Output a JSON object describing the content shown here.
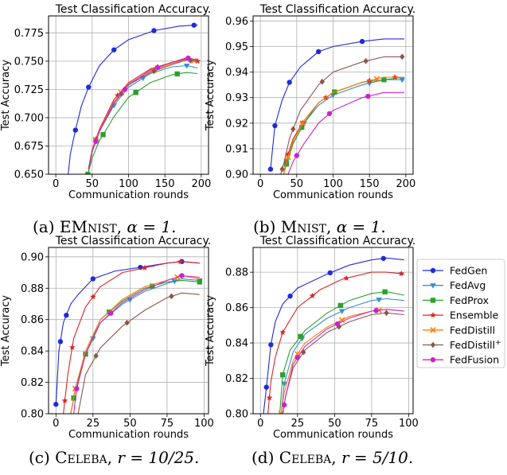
{
  "colors": {
    "FedGen": "#1f2bd6",
    "FedAvg": "#3a8fd0",
    "FedProx": "#2ca02c",
    "Ensemble": "#d62728",
    "FedDistill": "#ff7f0e",
    "FedDistill+": "#8c564b",
    "FedFusion": "#cc22cc"
  },
  "legend": {
    "placement": "right of panel (d)",
    "entries": [
      {
        "key": "FedGen",
        "label": "FedGen",
        "marker": "circle"
      },
      {
        "key": "FedAvg",
        "label": "FedAvg",
        "marker": "triangle-down"
      },
      {
        "key": "FedProx",
        "label": "FedProx",
        "marker": "square"
      },
      {
        "key": "Ensemble",
        "label": "Ensemble",
        "marker": "star"
      },
      {
        "key": "FedDistill",
        "label": "FedDistill",
        "marker": "x"
      },
      {
        "key": "FedDistill+",
        "label": "FedDistill",
        "label_sup": "+",
        "marker": "diamond"
      },
      {
        "key": "FedFusion",
        "label": "FedFusion",
        "marker": "circle"
      }
    ]
  },
  "captions": [
    {
      "prefix": "(a) ",
      "name": "EM",
      "name_sc": "NIST",
      "sep": ", ",
      "math": "α = 1",
      "suffix": "."
    },
    {
      "prefix": "(b) ",
      "name": "M",
      "name_sc": "NIST",
      "sep": ", ",
      "math": "α = 1",
      "suffix": "."
    },
    {
      "prefix": "(c) ",
      "name": "C",
      "name_sc": "ELEBA",
      "sep": ", ",
      "math": "r = 10/25",
      "suffix": "."
    },
    {
      "prefix": "(d) ",
      "name": "C",
      "name_sc": "ELEBA",
      "sep": ", ",
      "math": "r = 5/10",
      "suffix": "."
    }
  ],
  "chart_data": [
    {
      "type": "line",
      "title": "Test Classification Accuracy.",
      "xlabel": "Communication rounds",
      "ylabel": "Test Accuracy",
      "xlim": [
        -10,
        210
      ],
      "ylim": [
        0.65,
        0.79
      ],
      "xticks": [
        "0",
        "50",
        "100",
        "150",
        "200"
      ],
      "xtick_values": [
        0,
        50,
        100,
        150,
        200
      ],
      "yticks": [
        "0.650",
        "0.675",
        "0.700",
        "0.725",
        "0.750",
        "0.775"
      ],
      "ytick_values": [
        0.65,
        0.675,
        0.7,
        0.725,
        0.75,
        0.775
      ],
      "grid": true,
      "series": [
        {
          "name": "FedGen",
          "x": [
            17,
            20,
            27,
            35,
            45,
            60,
            80,
            100,
            135,
            170,
            195
          ],
          "y": [
            0.65,
            0.668,
            0.689,
            0.71,
            0.727,
            0.746,
            0.76,
            0.769,
            0.777,
            0.781,
            0.782
          ],
          "markers": [
            27,
            45,
            80,
            135,
            190
          ]
        },
        {
          "name": "FedAvg",
          "x": [
            45,
            50,
            60,
            80,
            100,
            130,
            160,
            180,
            195
          ],
          "y": [
            0.653,
            0.67,
            0.688,
            0.711,
            0.727,
            0.739,
            0.745,
            0.746,
            0.744
          ],
          "markers": [
            55,
            80,
            120,
            180
          ]
        },
        {
          "name": "FedProx",
          "x": [
            44,
            50,
            60,
            70,
            80,
            100,
            130,
            160,
            180,
            195
          ],
          "y": [
            0.65,
            0.664,
            0.68,
            0.69,
            0.701,
            0.718,
            0.731,
            0.738,
            0.74,
            0.739
          ],
          "markers": [
            44,
            65,
            110,
            167
          ]
        },
        {
          "name": "Ensemble",
          "x": [
            45,
            50,
            60,
            80,
            100,
            130,
            160,
            180,
            195
          ],
          "y": [
            0.655,
            0.672,
            0.69,
            0.716,
            0.731,
            0.743,
            0.749,
            0.752,
            0.75
          ],
          "markers": [
            55,
            85,
            140,
            195
          ]
        },
        {
          "name": "FedDistill",
          "x": [
            45,
            50,
            60,
            80,
            100,
            130,
            160,
            180,
            195
          ],
          "y": [
            0.655,
            0.672,
            0.689,
            0.714,
            0.73,
            0.741,
            0.748,
            0.751,
            0.75
          ],
          "markers": [
            55,
            90,
            135,
            190
          ]
        },
        {
          "name": "FedDistill+",
          "x": [
            45,
            50,
            60,
            80,
            100,
            130,
            160,
            180,
            195
          ],
          "y": [
            0.655,
            0.671,
            0.688,
            0.713,
            0.729,
            0.74,
            0.747,
            0.751,
            0.75
          ],
          "markers": [
            55,
            90,
            135,
            185
          ]
        },
        {
          "name": "FedFusion",
          "x": [
            45,
            50,
            60,
            80,
            100,
            130,
            160,
            180,
            195
          ],
          "y": [
            0.654,
            0.67,
            0.688,
            0.713,
            0.729,
            0.742,
            0.749,
            0.753,
            0.751
          ],
          "markers": [
            55,
            95,
            140,
            182
          ]
        }
      ]
    },
    {
      "type": "line",
      "title": "Test Classification Accuracy.",
      "xlabel": "Communication rounds",
      "ylabel": "Test Accuracy",
      "xlim": [
        -10,
        210
      ],
      "ylim": [
        0.9,
        0.962
      ],
      "xticks": [
        "0",
        "50",
        "100",
        "150",
        "200"
      ],
      "xtick_values": [
        0,
        50,
        100,
        150,
        200
      ],
      "yticks": [
        "0.90",
        "0.91",
        "0.92",
        "0.93",
        "0.94",
        "0.95",
        "0.96"
      ],
      "ytick_values": [
        0.9,
        0.91,
        0.92,
        0.93,
        0.94,
        0.95,
        0.96
      ],
      "grid": true,
      "series": [
        {
          "name": "FedGen",
          "x": [
            14,
            20,
            30,
            40,
            55,
            80,
            100,
            140,
            170,
            198
          ],
          "y": [
            0.902,
            0.919,
            0.929,
            0.936,
            0.942,
            0.948,
            0.95,
            0.952,
            0.953,
            0.953
          ],
          "markers": [
            14,
            20,
            40,
            80,
            140
          ]
        },
        {
          "name": "FedAvg",
          "x": [
            32,
            36,
            45,
            60,
            80,
            100,
            140,
            170,
            198
          ],
          "y": [
            0.9,
            0.905,
            0.912,
            0.92,
            0.927,
            0.931,
            0.935,
            0.937,
            0.937
          ],
          "markers": [
            36,
            60,
            100,
            150,
            195
          ]
        },
        {
          "name": "FedProx",
          "x": [
            32,
            36,
            45,
            60,
            80,
            100,
            140,
            170,
            198
          ],
          "y": [
            0.9,
            0.904,
            0.912,
            0.92,
            0.928,
            0.932,
            0.936,
            0.937,
            0.938
          ],
          "markers": [
            36,
            57,
            102,
            170
          ]
        },
        {
          "name": "Ensemble",
          "x": [
            32,
            36,
            45,
            60,
            80,
            100,
            140,
            170,
            198
          ],
          "y": [
            0.9,
            0.906,
            0.914,
            0.921,
            0.928,
            0.932,
            0.936,
            0.938,
            0.938
          ],
          "markers": [
            38,
            58,
            90,
            150,
            185
          ]
        },
        {
          "name": "FedDistill",
          "x": [
            32,
            36,
            45,
            60,
            80,
            100,
            140,
            170,
            198
          ],
          "y": [
            0.9,
            0.905,
            0.913,
            0.921,
            0.928,
            0.932,
            0.936,
            0.938,
            0.938
          ],
          "markers": [
            38,
            58,
            160
          ]
        },
        {
          "name": "FedDistill+",
          "x": [
            28,
            32,
            40,
            55,
            80,
            100,
            140,
            170,
            198
          ],
          "y": [
            0.9,
            0.904,
            0.914,
            0.925,
            0.935,
            0.94,
            0.944,
            0.946,
            0.946
          ],
          "markers": [
            30,
            45,
            85,
            145,
            195
          ]
        },
        {
          "name": "FedFusion",
          "x": [
            38,
            45,
            60,
            80,
            100,
            140,
            170,
            198
          ],
          "y": [
            0.9,
            0.905,
            0.912,
            0.92,
            0.925,
            0.93,
            0.932,
            0.932
          ],
          "markers": [
            50,
            95,
            148
          ]
        }
      ]
    },
    {
      "type": "line",
      "title": "Test Classification Accuracy.",
      "xlabel": "Communication rounds",
      "ylabel": "Test Accuracy",
      "xlim": [
        -5,
        103
      ],
      "ylim": [
        0.8,
        0.906
      ],
      "xticks": [
        "0",
        "25",
        "50",
        "75",
        "100"
      ],
      "xtick_values": [
        0,
        25,
        50,
        75,
        100
      ],
      "yticks": [
        "0.80",
        "0.82",
        "0.84",
        "0.86",
        "0.88",
        "0.90"
      ],
      "ytick_values": [
        0.8,
        0.82,
        0.84,
        0.86,
        0.88,
        0.9
      ],
      "grid": true,
      "series": [
        {
          "name": "FedGen",
          "x": [
            0,
            2,
            5,
            10,
            15,
            25,
            40,
            55,
            75,
            85,
            97
          ],
          "y": [
            0.806,
            0.84,
            0.858,
            0.87,
            0.876,
            0.886,
            0.891,
            0.893,
            0.896,
            0.897,
            0.896
          ],
          "markers": [
            0,
            3,
            7,
            25,
            57,
            85
          ]
        },
        {
          "name": "FedAvg",
          "x": [
            10,
            13,
            20,
            30,
            45,
            60,
            75,
            85,
            97
          ],
          "y": [
            0.8,
            0.815,
            0.838,
            0.858,
            0.87,
            0.878,
            0.883,
            0.886,
            0.885
          ],
          "markers": [
            12,
            25,
            50,
            80,
            97
          ]
        },
        {
          "name": "FedProx",
          "x": [
            10,
            13,
            20,
            30,
            45,
            60,
            75,
            85,
            97
          ],
          "y": [
            0.8,
            0.815,
            0.838,
            0.86,
            0.872,
            0.88,
            0.884,
            0.885,
            0.884
          ],
          "markers": [
            12,
            20,
            36,
            65,
            97
          ]
        },
        {
          "name": "Ensemble",
          "x": [
            5,
            8,
            12,
            20,
            30,
            45,
            60,
            75,
            85,
            97
          ],
          "y": [
            0.8,
            0.825,
            0.848,
            0.868,
            0.881,
            0.89,
            0.893,
            0.896,
            0.897,
            0.896
          ],
          "markers": [
            6,
            11,
            25,
            60,
            84
          ]
        },
        {
          "name": "FedDistill",
          "x": [
            10,
            13,
            20,
            30,
            45,
            60,
            75,
            85,
            97
          ],
          "y": [
            0.8,
            0.816,
            0.84,
            0.86,
            0.873,
            0.881,
            0.885,
            0.888,
            0.886
          ],
          "markers": [
            13,
            82
          ]
        },
        {
          "name": "FedDistill+",
          "x": [
            15,
            20,
            30,
            45,
            60,
            75,
            85,
            97
          ],
          "y": [
            0.8,
            0.825,
            0.842,
            0.856,
            0.866,
            0.874,
            0.877,
            0.876
          ],
          "markers": [
            27,
            48,
            78
          ]
        },
        {
          "name": "FedFusion",
          "x": [
            12,
            14,
            20,
            30,
            45,
            60,
            75,
            85,
            97
          ],
          "y": [
            0.8,
            0.816,
            0.838,
            0.858,
            0.871,
            0.879,
            0.885,
            0.888,
            0.887
          ],
          "markers": [
            14,
            37,
            85
          ]
        }
      ]
    },
    {
      "type": "line",
      "title": "Test Classification Accuracy.",
      "xlabel": "Communication rounds",
      "ylabel": "Test Accuracy",
      "xlim": [
        -5,
        103
      ],
      "ylim": [
        0.8,
        0.894
      ],
      "xticks": [
        "0",
        "25",
        "50",
        "75",
        "100"
      ],
      "xtick_values": [
        0,
        25,
        50,
        75,
        100
      ],
      "yticks": [
        "0.80",
        "0.82",
        "0.84",
        "0.86",
        "0.88"
      ],
      "ytick_values": [
        0.8,
        0.82,
        0.84,
        0.86,
        0.88
      ],
      "grid": true,
      "series": [
        {
          "name": "FedGen",
          "x": [
            2,
            4,
            7,
            10,
            15,
            25,
            45,
            60,
            75,
            85,
            97
          ],
          "y": [
            0.8,
            0.815,
            0.839,
            0.852,
            0.862,
            0.871,
            0.879,
            0.884,
            0.887,
            0.888,
            0.887
          ],
          "markers": [
            4,
            7,
            20,
            47,
            83
          ]
        },
        {
          "name": "FedAvg",
          "x": [
            14,
            16,
            22,
            30,
            45,
            60,
            75,
            85,
            97
          ],
          "y": [
            0.8,
            0.817,
            0.835,
            0.845,
            0.854,
            0.86,
            0.864,
            0.865,
            0.864
          ],
          "markers": [
            16,
            28,
            55,
            80
          ]
        },
        {
          "name": "FedProx",
          "x": [
            13,
            15,
            20,
            30,
            45,
            60,
            75,
            85,
            97
          ],
          "y": [
            0.8,
            0.822,
            0.836,
            0.847,
            0.857,
            0.864,
            0.868,
            0.869,
            0.867
          ],
          "markers": [
            15,
            27,
            54,
            84
          ]
        },
        {
          "name": "Ensemble",
          "x": [
            5,
            7,
            10,
            15,
            25,
            40,
            55,
            75,
            85,
            97
          ],
          "y": [
            0.8,
            0.818,
            0.832,
            0.846,
            0.86,
            0.87,
            0.876,
            0.88,
            0.88,
            0.879
          ],
          "markers": [
            6,
            15,
            35,
            58,
            95
          ]
        },
        {
          "name": "FedDistill",
          "x": [
            14,
            16,
            22,
            30,
            45,
            60,
            75,
            85,
            97
          ],
          "y": [
            0.8,
            0.812,
            0.83,
            0.84,
            0.849,
            0.855,
            0.858,
            0.859,
            0.858
          ],
          "markers": [
            14,
            25,
            55,
            80
          ]
        },
        {
          "name": "FedDistill+",
          "x": [
            15,
            17,
            22,
            30,
            45,
            60,
            75,
            85,
            97
          ],
          "y": [
            0.8,
            0.81,
            0.826,
            0.836,
            0.846,
            0.852,
            0.856,
            0.857,
            0.856
          ],
          "markers": [
            16,
            29,
            53,
            85
          ]
        },
        {
          "name": "FedFusion",
          "x": [
            15,
            17,
            22,
            30,
            45,
            60,
            75,
            85,
            97
          ],
          "y": [
            0.8,
            0.81,
            0.828,
            0.838,
            0.848,
            0.854,
            0.858,
            0.859,
            0.858
          ],
          "markers": [
            16,
            25,
            52,
            78
          ]
        }
      ]
    }
  ]
}
